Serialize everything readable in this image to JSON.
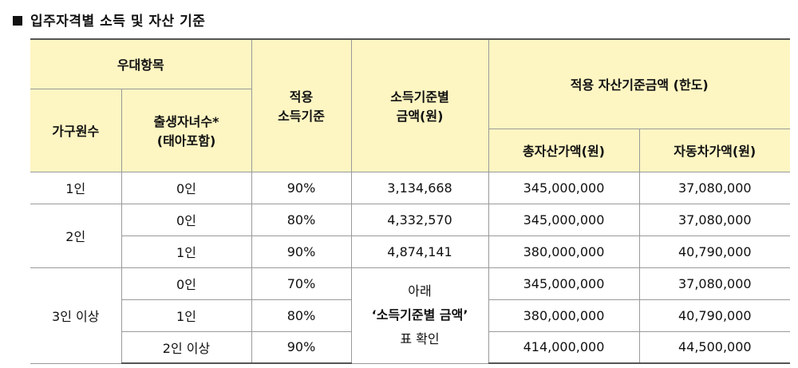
{
  "title": "입주자격별 소득 및 자산 기준",
  "table": {
    "header": {
      "priority": "우대항목",
      "household": "가구원수",
      "births_line1": "출생자녀수*",
      "births_line2": "(태아포함)",
      "income_std_line1": "적용",
      "income_std_line2": "소득기준",
      "income_amt_line1": "소득기준별",
      "income_amt_line2": "금액(원)",
      "asset_group": "적용 자산기준금액 (한도)",
      "total_assets": "총자산가액(원)",
      "car_value": "자동차가액(원)"
    },
    "groups": [
      {
        "household": "1인",
        "rows": [
          {
            "births": "0인",
            "income_std": "90%",
            "income_amt": "3,134,668",
            "total_assets": "345,000,000",
            "car_value": "37,080,000"
          }
        ]
      },
      {
        "household": "2인",
        "rows": [
          {
            "births": "0인",
            "income_std": "80%",
            "income_amt": "4,332,570",
            "total_assets": "345,000,000",
            "car_value": "37,080,000"
          },
          {
            "births": "1인",
            "income_std": "90%",
            "income_amt": "4,874,141",
            "total_assets": "380,000,000",
            "car_value": "40,790,000"
          }
        ]
      },
      {
        "household": "3인 이상",
        "income_amt_note_line1": "아래",
        "income_amt_note_line2": "‘소득기준별 금액’",
        "income_amt_note_line3": "표 확인",
        "rows": [
          {
            "births": "0인",
            "income_std": "70%",
            "total_assets": "345,000,000",
            "car_value": "37,080,000"
          },
          {
            "births": "1인",
            "income_std": "80%",
            "total_assets": "380,000,000",
            "car_value": "40,790,000"
          },
          {
            "births": "2인 이상",
            "income_std": "90%",
            "total_assets": "414,000,000",
            "car_value": "44,500,000"
          }
        ]
      }
    ]
  }
}
